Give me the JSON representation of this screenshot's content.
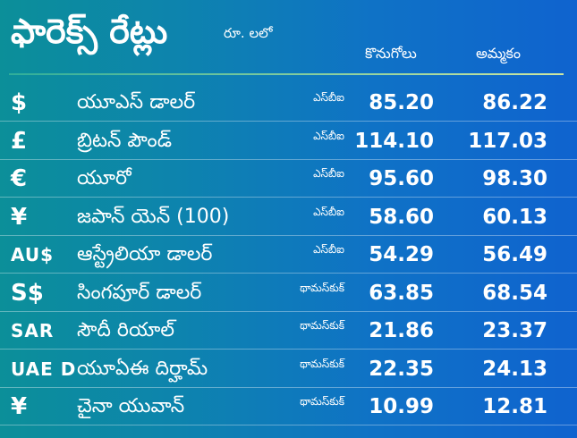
{
  "header": {
    "title": "ఫారెక్స్ రేట్లు",
    "unit": "రూ. లలో",
    "buy_label": "కొనుగోలు",
    "sell_label": "అమ్మకం"
  },
  "rates": [
    {
      "symbol": "$",
      "name": "యూఎస్ డాలర్",
      "bank": "ఎస్‌బీఐ",
      "buy": "85.20",
      "sell": "86.22"
    },
    {
      "symbol": "£",
      "name": "బ్రిటన్ పౌండ్",
      "bank": "ఎస్‌బీఐ",
      "buy": "114.10",
      "sell": "117.03"
    },
    {
      "symbol": "€",
      "name": "యూరో",
      "bank": "ఎస్‌బీఐ",
      "buy": "95.60",
      "sell": "98.30"
    },
    {
      "symbol": "¥",
      "name": "జపాన్ యెన్ (100)",
      "bank": "ఎస్‌బీఐ",
      "buy": "58.60",
      "sell": "60.13"
    },
    {
      "symbol": "AU$",
      "name": "ఆస్ట్రేలియా డాలర్",
      "bank": "ఎస్‌బీఐ",
      "buy": "54.29",
      "sell": "56.49"
    },
    {
      "symbol": "S$",
      "name": "సింగపూర్ డాలర్",
      "bank": "థామస్‌కుక్",
      "buy": "63.85",
      "sell": "68.54"
    },
    {
      "symbol": "SAR",
      "name": "సౌదీ రియాల్",
      "bank": "థామస్‌కుక్",
      "buy": "21.86",
      "sell": "23.37"
    },
    {
      "symbol": "UAE D",
      "name": "యూఏఈ దిర్హామ్",
      "bank": "థామస్‌కుక్",
      "buy": "22.35",
      "sell": "24.13"
    },
    {
      "symbol": "¥",
      "name": "చైనా యువాన్",
      "bank": "థామస్‌కుక్",
      "buy": "10.99",
      "sell": "12.81"
    }
  ]
}
